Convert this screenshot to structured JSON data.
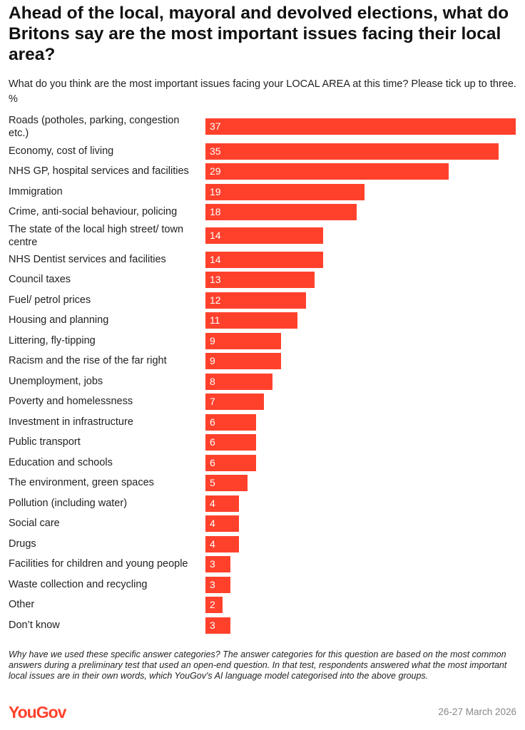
{
  "chart_data": {
    "type": "bar",
    "orientation": "horizontal",
    "title": "Ahead of the local, mayoral and devolved elections, what do Britons say are the most important issues facing their local area?",
    "subtitle": "What do you think are the most important issues facing your LOCAL AREA at this time? Please tick up to three. %",
    "categories": [
      "Roads (potholes, parking, congestion etc.)",
      "Economy, cost of living",
      "NHS GP, hospital services and facilities",
      "Immigration",
      "Crime, anti-social behaviour, policing",
      "The state of the local high street/ town centre",
      "NHS Dentist services and facilities",
      "Council taxes",
      "Fuel/ petrol prices",
      "Housing and planning",
      "Littering, fly-tipping",
      "Racism and the rise of the far right",
      "Unemployment, jobs",
      "Poverty and homelessness",
      "Investment in infrastructure",
      "Public transport",
      "Education and schools",
      "The environment, green spaces",
      "Pollution (including water)",
      "Social care",
      "Drugs",
      "Facilities for children and young people",
      "Waste collection and recycling",
      "Other",
      "Don’t know"
    ],
    "values": [
      37,
      35,
      29,
      19,
      18,
      14,
      14,
      13,
      12,
      11,
      9,
      9,
      8,
      7,
      6,
      6,
      6,
      5,
      4,
      4,
      4,
      3,
      3,
      2,
      3
    ],
    "xlim": [
      0,
      37
    ],
    "bar_color": "#ff412c"
  },
  "footer": {
    "note": "Why have we used these specific answer categories? The answer categories for this question are based on the most common answers during a preliminary test that used an open-end question. In that test, respondents answered what the most important local issues are in their own words, which YouGov's AI language model categorised into the above groups.",
    "logo": "YouGov",
    "date": "26-27 March 2026"
  }
}
